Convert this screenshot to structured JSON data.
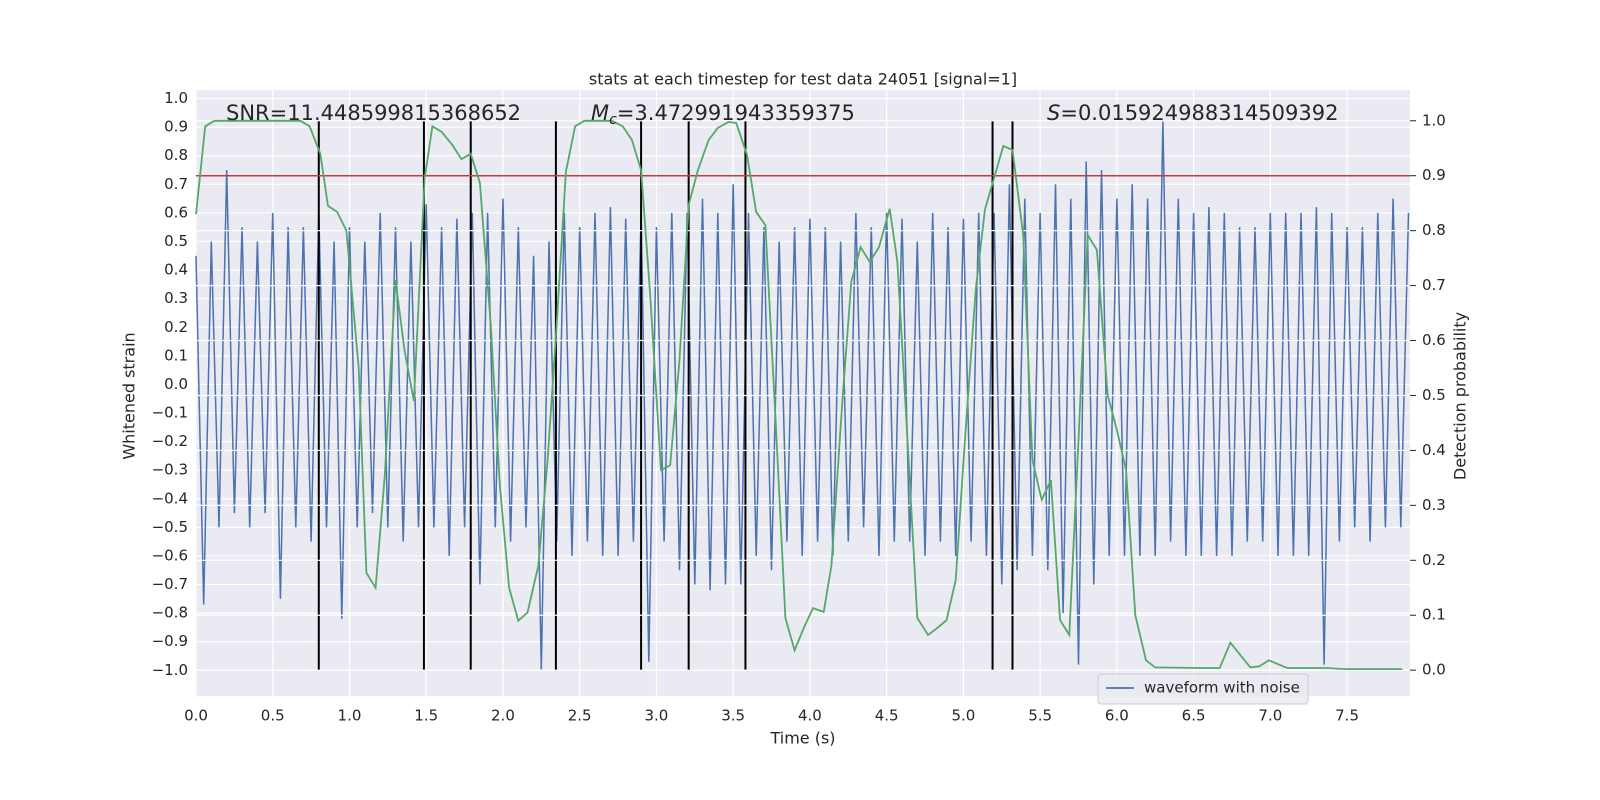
{
  "chart_data": {
    "type": "line",
    "title": "stats at each timestep for test data 24051 [signal=1]",
    "x_label": "Time (s)",
    "y_label": "Whitened strain",
    "y2_label": "Detection probability",
    "annotations": {
      "snr": "SNR=11.448599815368652",
      "mc": {
        "symbol": "M",
        "subscript": "c",
        "text": "=3.472991943359375"
      },
      "s": {
        "symbol": "S",
        "text": "=0.015924988314509392"
      }
    },
    "xlim": [
      0,
      7.91
    ],
    "ylim": [
      -1.09,
      1.03
    ],
    "y2lim": [
      -0.047,
      1.056
    ],
    "xticks": [
      {
        "value": 0,
        "label": "0.0"
      },
      0.5,
      {
        "value": 1,
        "label": "1.0"
      },
      1.5,
      {
        "value": 2,
        "label": "2.0"
      },
      2.5,
      {
        "value": 3,
        "label": "3.0"
      },
      3.5,
      {
        "value": 4,
        "label": "4.0"
      },
      4.5,
      {
        "value": 5,
        "label": "5.0"
      },
      5.5,
      {
        "value": 6,
        "label": "6.0"
      },
      6.5,
      {
        "value": 7,
        "label": "7.0"
      },
      7.5
    ],
    "yticks": [
      {
        "value": -1,
        "label": "−1.0"
      },
      {
        "value": -0.9,
        "label": "−0.9"
      },
      {
        "value": -0.8,
        "label": "−0.8"
      },
      {
        "value": -0.7,
        "label": "−0.7"
      },
      {
        "value": -0.6,
        "label": "−0.6"
      },
      {
        "value": -0.5,
        "label": "−0.5"
      },
      {
        "value": -0.4,
        "label": "−0.4"
      },
      {
        "value": -0.3,
        "label": "−0.3"
      },
      {
        "value": -0.2,
        "label": "−0.2"
      },
      {
        "value": -0.1,
        "label": "−0.1"
      },
      {
        "value": 0,
        "label": "0.0"
      },
      0.1,
      0.2,
      0.3,
      0.4,
      0.5,
      0.6,
      0.7,
      0.8,
      0.9,
      {
        "value": 1,
        "label": "1.0"
      }
    ],
    "y2ticks": [
      {
        "value": 0,
        "label": "0.0"
      },
      0.1,
      0.2,
      0.3,
      0.4,
      0.5,
      0.6,
      0.7,
      0.8,
      0.9,
      {
        "value": 1,
        "label": "1.0"
      }
    ],
    "grid": true,
    "legend": "lower right",
    "series": [
      {
        "name": "waveform with noise",
        "color": "#4c72b0",
        "x": [
          0,
          0.05,
          0.1,
          0.15,
          0.2,
          0.25,
          0.3,
          0.35,
          0.4,
          0.45,
          0.5,
          0.55,
          0.6,
          0.65,
          0.7,
          0.75,
          0.8,
          0.85,
          0.9,
          0.95,
          1,
          1.05,
          1.1,
          1.15,
          1.2,
          1.25,
          1.3,
          1.35,
          1.4,
          1.45,
          1.5,
          1.55,
          1.6,
          1.65,
          1.7,
          1.75,
          1.8,
          1.85,
          1.9,
          1.95,
          2,
          2.05,
          2.1,
          2.15,
          2.2,
          2.25,
          2.3,
          2.35,
          2.4,
          2.45,
          2.5,
          2.55,
          2.6,
          2.65,
          2.7,
          2.75,
          2.8,
          2.85,
          2.9,
          2.95,
          3,
          3.05,
          3.1,
          3.15,
          3.2,
          3.25,
          3.3,
          3.35,
          3.4,
          3.45,
          3.5,
          3.55,
          3.6,
          3.65,
          3.7,
          3.75,
          3.8,
          3.85,
          3.9,
          3.95,
          4,
          4.05,
          4.1,
          4.15,
          4.2,
          4.25,
          4.3,
          4.35,
          4.4,
          4.45,
          4.5,
          4.55,
          4.6,
          4.65,
          4.7,
          4.75,
          4.8,
          4.85,
          4.9,
          4.95,
          5,
          5.05,
          5.1,
          5.15,
          5.2,
          5.25,
          5.3,
          5.35,
          5.4,
          5.45,
          5.5,
          5.55,
          5.6,
          5.65,
          5.7,
          5.75,
          5.8,
          5.85,
          5.9,
          5.95,
          6,
          6.05,
          6.1,
          6.15,
          6.2,
          6.25,
          6.3,
          6.35,
          6.4,
          6.45,
          6.5,
          6.55,
          6.6,
          6.65,
          6.7,
          6.75,
          6.8,
          6.85,
          6.9,
          6.95,
          7,
          7.05,
          7.1,
          7.15,
          7.2,
          7.25,
          7.3,
          7.35,
          7.4,
          7.45,
          7.5,
          7.55,
          7.6,
          7.65,
          7.7,
          7.75,
          7.8,
          7.85,
          7.9
        ],
        "values": [
          0.45,
          -0.77,
          0.5,
          -0.5,
          0.75,
          -0.45,
          0.55,
          -0.5,
          0.5,
          -0.45,
          0.6,
          -0.75,
          0.55,
          -0.5,
          0.55,
          -0.55,
          0.6,
          -0.5,
          0.5,
          -0.82,
          0.55,
          -0.5,
          0.5,
          -0.45,
          0.6,
          -0.5,
          0.55,
          -0.55,
          0.5,
          -0.5,
          0.63,
          -0.5,
          0.55,
          -0.6,
          0.58,
          -0.5,
          0.6,
          -0.7,
          0.6,
          -0.5,
          0.65,
          -0.55,
          0.55,
          -0.5,
          0.45,
          -1.0,
          0.5,
          -0.55,
          0.6,
          -0.6,
          0.55,
          -0.55,
          0.6,
          -0.6,
          0.62,
          -0.6,
          0.58,
          -0.55,
          0.6,
          -0.97,
          0.55,
          -0.55,
          0.6,
          -0.65,
          0.6,
          -0.7,
          0.65,
          -0.72,
          0.6,
          -0.7,
          0.7,
          -0.7,
          0.6,
          -0.6,
          0.55,
          -0.65,
          0.5,
          -0.55,
          0.55,
          -0.6,
          0.58,
          -0.55,
          0.55,
          -0.6,
          0.5,
          -0.55,
          0.6,
          -0.5,
          0.55,
          -0.6,
          0.6,
          -0.55,
          0.58,
          -0.55,
          0.5,
          -0.6,
          0.6,
          -0.55,
          0.55,
          -0.6,
          0.58,
          -0.55,
          0.6,
          -0.6,
          0.6,
          -0.7,
          0.7,
          -0.65,
          0.65,
          -0.6,
          0.6,
          -0.65,
          0.7,
          -0.8,
          0.65,
          -0.98,
          0.78,
          -0.7,
          0.75,
          -0.6,
          0.65,
          -0.6,
          0.7,
          -0.6,
          0.65,
          -0.6,
          0.92,
          -0.55,
          0.65,
          -0.6,
          0.6,
          -0.6,
          0.62,
          -0.6,
          0.6,
          -0.6,
          0.55,
          -0.55,
          0.55,
          -0.55,
          0.6,
          -0.6,
          0.6,
          -0.6,
          0.6,
          -0.6,
          0.62,
          -0.98,
          0.6,
          -0.55,
          0.55,
          -0.5,
          0.55,
          -0.55,
          0.6,
          -0.5,
          0.65,
          -0.5,
          0.6
        ]
      },
      {
        "color": "#55a868",
        "axis": "y2",
        "x": [
          0,
          0.06,
          0.12,
          0.68,
          0.74,
          0.81,
          0.86,
          0.92,
          0.98,
          1.06,
          1.11,
          1.17,
          1.23,
          1.3,
          1.36,
          1.42,
          1.49,
          1.54,
          1.6,
          1.67,
          1.73,
          1.79,
          1.85,
          1.92,
          1.98,
          2.04,
          2.1,
          2.16,
          2.23,
          2.29,
          2.35,
          2.41,
          2.47,
          2.53,
          2.71,
          2.78,
          2.84,
          2.9,
          2.96,
          3.03,
          3.09,
          3.15,
          3.21,
          3.27,
          3.34,
          3.4,
          3.47,
          3.52,
          3.59,
          3.65,
          3.71,
          3.78,
          3.84,
          3.9,
          3.96,
          4.02,
          4.09,
          4.14,
          4.21,
          4.27,
          4.33,
          4.39,
          4.45,
          4.52,
          4.57,
          4.64,
          4.7,
          4.77,
          4.83,
          4.89,
          4.95,
          5.01,
          5.08,
          5.14,
          5.2,
          5.26,
          5.32,
          5.39,
          5.45,
          5.51,
          5.57,
          5.63,
          5.69,
          5.75,
          5.81,
          5.87,
          5.94,
          6,
          6.06,
          6.12,
          6.19,
          6.25,
          6.54,
          6.67,
          6.74,
          6.87,
          6.93,
          6.99,
          7.11,
          7.36,
          7.49,
          7.86
        ],
        "values": [
          0.83,
          0.99,
          1.0,
          1.0,
          0.99,
          0.94,
          0.845,
          0.834,
          0.8,
          0.55,
          0.177,
          0.15,
          0.355,
          0.71,
          0.58,
          0.49,
          0.896,
          0.99,
          0.98,
          0.956,
          0.93,
          0.94,
          0.887,
          0.63,
          0.335,
          0.15,
          0.09,
          0.105,
          0.19,
          0.38,
          0.63,
          0.907,
          0.99,
          1.0,
          1.0,
          0.99,
          0.965,
          0.91,
          0.68,
          0.364,
          0.373,
          0.565,
          0.847,
          0.91,
          0.965,
          0.987,
          0.998,
          0.996,
          0.938,
          0.834,
          0.81,
          0.437,
          0.095,
          0.036,
          0.077,
          0.113,
          0.106,
          0.19,
          0.483,
          0.707,
          0.77,
          0.743,
          0.77,
          0.84,
          0.743,
          0.4,
          0.095,
          0.064,
          0.077,
          0.091,
          0.164,
          0.419,
          0.692,
          0.838,
          0.896,
          0.954,
          0.947,
          0.792,
          0.383,
          0.31,
          0.346,
          0.091,
          0.064,
          0.419,
          0.792,
          0.765,
          0.5,
          0.437,
          0.364,
          0.1,
          0.018,
          0.005,
          0.004,
          0.004,
          0.05,
          0.005,
          0.007,
          0.018,
          0.004,
          0.004,
          0.002,
          0.002
        ]
      }
    ],
    "hlines": [
      {
        "value": 0.9,
        "axis": "y2",
        "color": "#c03d3e"
      }
    ],
    "vlines": {
      "color": "#000000",
      "x": [
        0.8,
        1.485,
        1.79,
        2.345,
        2.9,
        3.21,
        3.58,
        5.19,
        5.32
      ]
    }
  }
}
